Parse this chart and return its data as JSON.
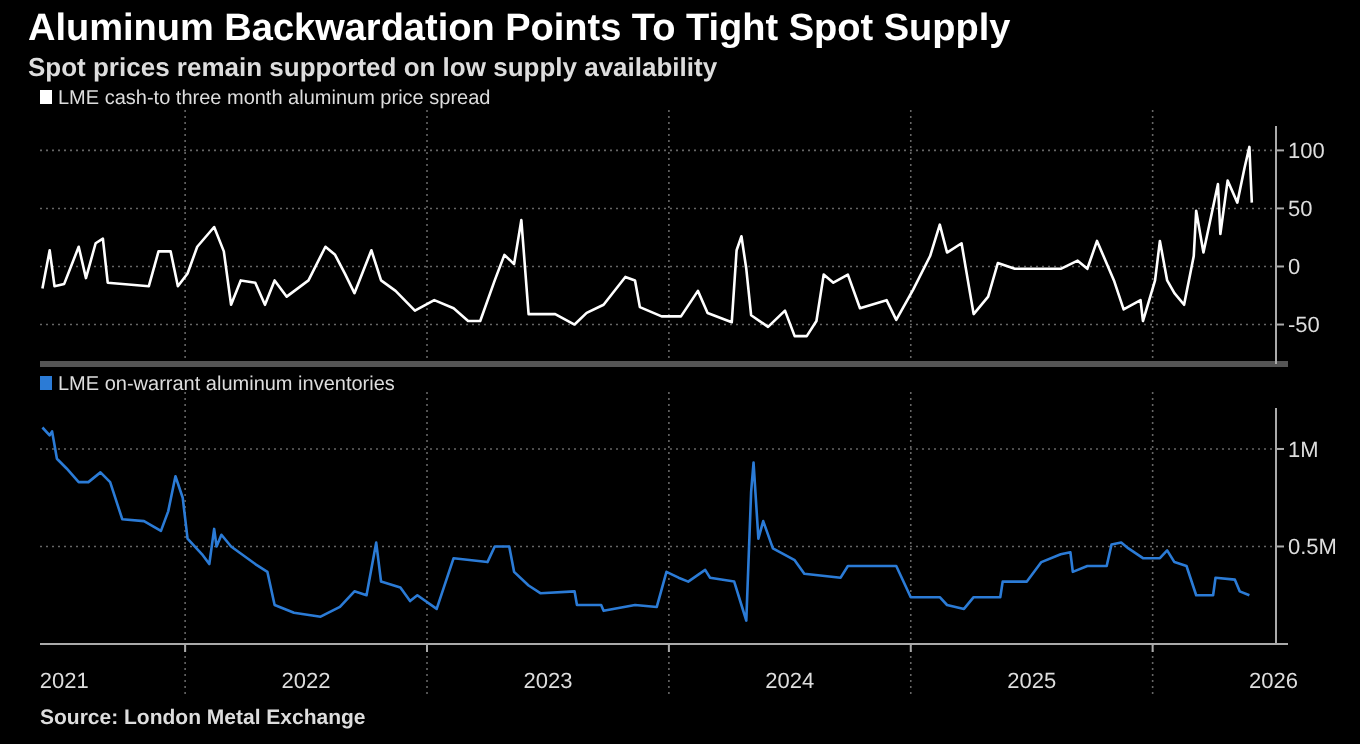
{
  "chart_data": [
    {
      "type": "line",
      "title": "Aluminum Backwardation Points To Tight Spot Supply",
      "subtitle": "Spot prices remain supported on low supply availability",
      "series": [
        {
          "name": "LME cash-to three month aluminum price spread",
          "color": "#ffffff",
          "x": [
            2021.41,
            2021.44,
            2021.46,
            2021.5,
            2021.56,
            2021.59,
            2021.63,
            2021.66,
            2021.68,
            2021.79,
            2021.85,
            2021.89,
            2021.94,
            2021.97,
            2022.01,
            2022.05,
            2022.12,
            2022.16,
            2022.19,
            2022.23,
            2022.29,
            2022.33,
            2022.37,
            2022.42,
            2022.51,
            2022.58,
            2022.62,
            2022.66,
            2022.7,
            2022.77,
            2022.81,
            2022.87,
            2022.95,
            2023.03,
            2023.11,
            2023.17,
            2023.22,
            2023.28,
            2023.32,
            2023.36,
            2023.39,
            2023.42,
            2023.53,
            2023.61,
            2023.66,
            2023.73,
            2023.82,
            2023.86,
            2023.88,
            2023.97,
            2024.05,
            2024.12,
            2024.16,
            2024.26,
            2024.28,
            2024.3,
            2024.32,
            2024.34,
            2024.41,
            2024.48,
            2024.52,
            2024.57,
            2024.61,
            2024.64,
            2024.68,
            2024.74,
            2024.79,
            2024.9,
            2024.94,
            2025.01,
            2025.08,
            2025.12,
            2025.15,
            2025.21,
            2025.25,
            2025.26,
            2025.32,
            2025.36,
            2025.43,
            2025.51,
            2025.62,
            2025.69,
            2025.73,
            2025.77,
            2025.84,
            2025.88,
            2025.95,
            2025.96,
            2026.01,
            2026.03,
            2026.06,
            2026.09,
            2026.13,
            2026.17,
            2026.18,
            2026.21,
            2026.27,
            2026.28,
            2026.31,
            2026.35,
            2026.38,
            2026.4,
            2026.41
          ],
          "values": [
            -19,
            14,
            -17,
            -15,
            17,
            -10,
            20,
            24,
            -14,
            -16,
            -17,
            13,
            13,
            -17,
            -6,
            17,
            34,
            13,
            -33,
            -12,
            -14,
            -33,
            -12,
            -26,
            -12,
            17,
            10,
            -6,
            -23,
            14,
            -12,
            -21,
            -38,
            -29,
            -36,
            -47,
            -47,
            -12,
            10,
            2,
            40,
            -41,
            -41,
            -50,
            -40,
            -33,
            -9,
            -12,
            -35,
            -43,
            -43,
            -21,
            -40,
            -48,
            14,
            26,
            -2,
            -42,
            -52,
            -38,
            -60,
            -60,
            -47,
            -7,
            -14,
            -7,
            -36,
            -29,
            -46,
            -20,
            9,
            36,
            12,
            20,
            -29,
            -41,
            -26,
            3,
            -2,
            -2,
            -2,
            5,
            -2,
            22,
            -12,
            -37,
            -29,
            -47,
            -12,
            22,
            -12,
            -23,
            -33,
            9,
            48,
            12,
            71,
            28,
            74,
            55,
            85,
            103,
            55
          ]
        }
      ],
      "xlim": [
        2021.4,
        2026.51
      ],
      "xticks": [
        {
          "value": 2022,
          "label": null
        },
        {
          "value": 2023,
          "label": null
        },
        {
          "value": 2024,
          "label": null
        },
        {
          "value": 2025,
          "label": null
        },
        {
          "value": 2026,
          "label": null
        }
      ],
      "ylim": [
        -84,
        121
      ],
      "yticks": [
        -50,
        0,
        50,
        100
      ],
      "grid": true,
      "legend": "top left",
      "tick_labels": "y"
    },
    {
      "type": "line",
      "series": [
        {
          "name": "LME on-warrant aluminum inventories",
          "color": "#2b7bd6",
          "x": [
            2021.41,
            2021.44,
            2021.45,
            2021.47,
            2021.51,
            2021.56,
            2021.6,
            2021.65,
            2021.69,
            2021.74,
            2021.83,
            2021.9,
            2021.93,
            2021.96,
            2021.99,
            2022.01,
            2022.07,
            2022.1,
            2022.12,
            2022.13,
            2022.15,
            2022.19,
            2022.29,
            2022.34,
            2022.37,
            2022.45,
            2022.56,
            2022.64,
            2022.7,
            2022.75,
            2022.79,
            2022.81,
            2022.89,
            2022.93,
            2022.96,
            2023.04,
            2023.11,
            2023.25,
            2023.28,
            2023.34,
            2023.36,
            2023.42,
            2023.47,
            2023.61,
            2023.62,
            2023.72,
            2023.73,
            2023.86,
            2023.95,
            2023.99,
            2024.04,
            2024.08,
            2024.15,
            2024.17,
            2024.27,
            2024.3,
            2024.32,
            2024.34,
            2024.35,
            2024.37,
            2024.39,
            2024.43,
            2024.52,
            2024.56,
            2024.71,
            2024.74,
            2024.94,
            2025.0,
            2025.12,
            2025.15,
            2025.22,
            2025.26,
            2025.37,
            2025.38,
            2025.48,
            2025.54,
            2025.62,
            2025.66,
            2025.67,
            2025.73,
            2025.81,
            2025.83,
            2025.87,
            2025.9,
            2025.96,
            2026.03,
            2026.06,
            2026.09,
            2026.14,
            2026.18,
            2026.25,
            2026.26,
            2026.34,
            2026.36,
            2026.4
          ],
          "values": [
            1110000,
            1070000,
            1090000,
            950000,
            900000,
            830000,
            830000,
            880000,
            830000,
            640000,
            630000,
            580000,
            680000,
            860000,
            750000,
            540000,
            460000,
            410000,
            590000,
            500000,
            560000,
            500000,
            410000,
            370000,
            200000,
            160000,
            140000,
            190000,
            270000,
            250000,
            520000,
            320000,
            290000,
            220000,
            250000,
            180000,
            440000,
            420000,
            500000,
            500000,
            370000,
            300000,
            260000,
            270000,
            200000,
            200000,
            170000,
            200000,
            190000,
            370000,
            340000,
            320000,
            380000,
            340000,
            320000,
            200000,
            120000,
            780000,
            930000,
            540000,
            630000,
            490000,
            430000,
            360000,
            340000,
            400000,
            400000,
            240000,
            240000,
            200000,
            180000,
            240000,
            240000,
            320000,
            320000,
            420000,
            460000,
            470000,
            370000,
            400000,
            400000,
            510000,
            520000,
            490000,
            440000,
            440000,
            480000,
            420000,
            400000,
            250000,
            250000,
            340000,
            330000,
            270000,
            250000
          ]
        }
      ],
      "xlim": [
        2021.4,
        2026.51
      ],
      "xticks": [
        {
          "value": 2021.5,
          "label": "2021"
        },
        {
          "value": 2022,
          "label": null
        },
        {
          "value": 2022.5,
          "label": "2022"
        },
        {
          "value": 2023,
          "label": null
        },
        {
          "value": 2023.5,
          "label": "2023"
        },
        {
          "value": 2024,
          "label": null
        },
        {
          "value": 2024.5,
          "label": "2024"
        },
        {
          "value": 2025,
          "label": null
        },
        {
          "value": 2025.5,
          "label": "2025"
        },
        {
          "value": 2026,
          "label": null
        },
        {
          "value": 2026.5,
          "label": "2026"
        }
      ],
      "ylim": [
        0,
        1210000
      ],
      "yticks": [
        {
          "value": 500000,
          "label": "0.5M"
        },
        {
          "value": 1000000,
          "label": "1M"
        }
      ],
      "grid": true,
      "legend": "top left",
      "annotations": [
        "Source: London Metal Exchange"
      ]
    }
  ]
}
